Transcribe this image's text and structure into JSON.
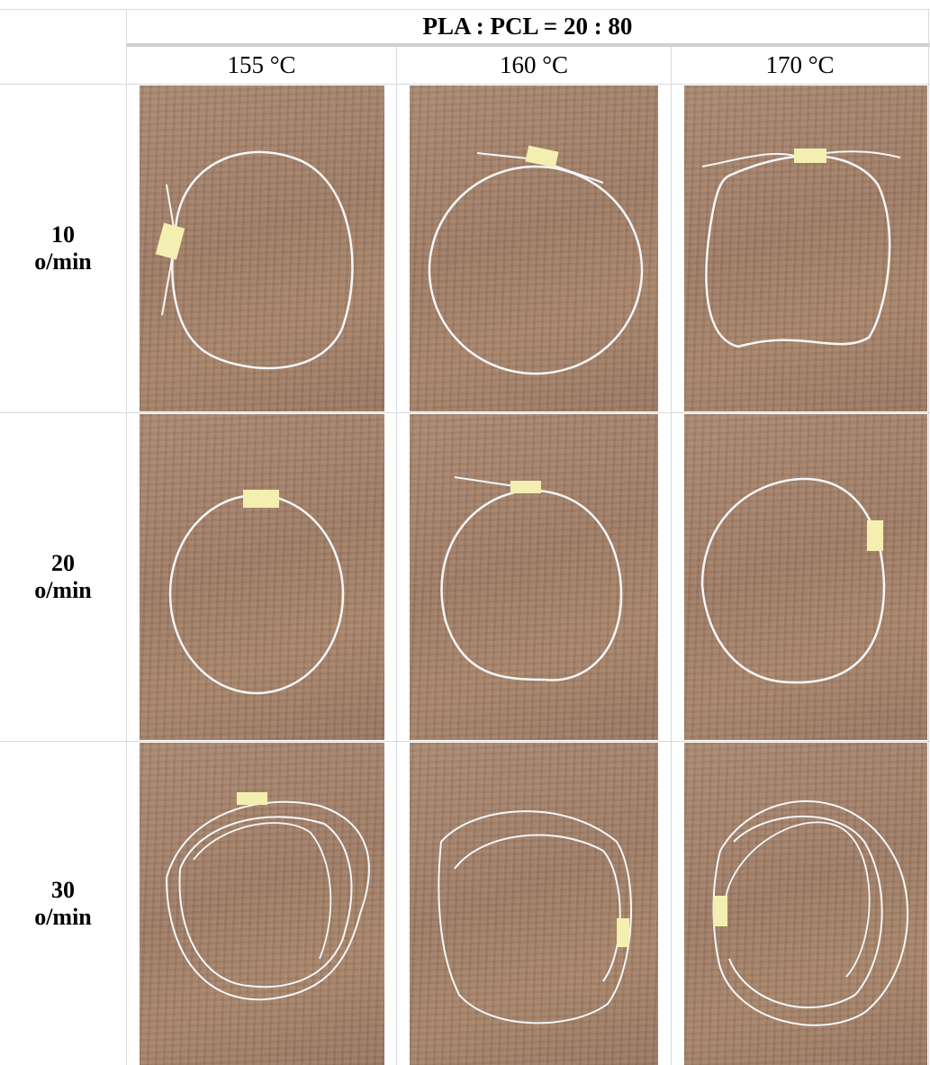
{
  "table": {
    "composition_header": "PLA : PCL = 20 : 80",
    "temperatures": [
      "155 °C",
      "160 °C",
      "170 °C"
    ],
    "rows": [
      {
        "speed": "10",
        "unit": "o/min"
      },
      {
        "speed": "20",
        "unit": "o/min"
      },
      {
        "speed": "30",
        "unit": "o/min"
      }
    ],
    "photo_subject": "white filament loop with yellow label on wooden table",
    "colors": {
      "wood": "#a0806a",
      "filament": "#f4f6f8",
      "label": "#f3efb0",
      "grid": "#d9d9d9"
    }
  }
}
